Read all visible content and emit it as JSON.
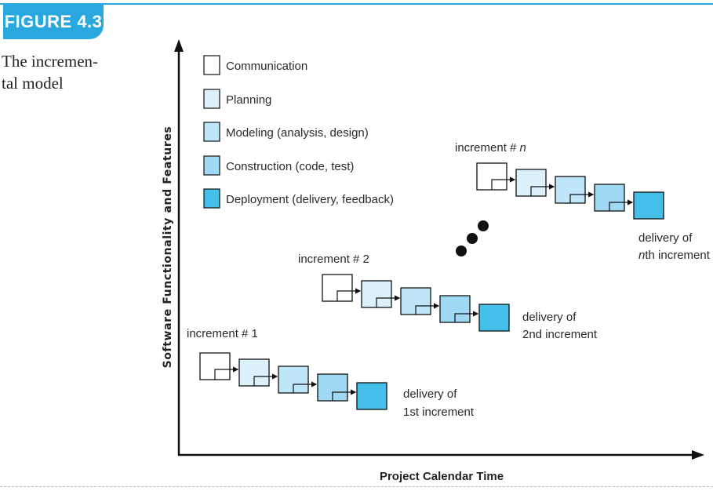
{
  "figure": {
    "badge": "FIGURE 4.3",
    "caption_line1": "The incremen-",
    "caption_line2": "tal model"
  },
  "axes": {
    "x_label": "Project Calendar Time",
    "y_label": "Software Functionality and Features"
  },
  "legend": [
    {
      "label": "Communication",
      "color": "#ffffff"
    },
    {
      "label": "Planning",
      "color": "#dcf1fc"
    },
    {
      "label": "Modeling (analysis, design)",
      "color": "#bee6f8"
    },
    {
      "label": "Construction (code, test)",
      "color": "#9fd9f3"
    },
    {
      "label": "Deployment (delivery, feedback)",
      "color": "#44bfe9"
    }
  ],
  "increments": [
    {
      "label": "increment # 1",
      "delivery_line1": "delivery of",
      "delivery_line2": "1st increment"
    },
    {
      "label": "increment # 2",
      "delivery_line1": "delivery of",
      "delivery_line2": "2nd increment"
    },
    {
      "label": "increment # ",
      "label_italic": "n",
      "delivery_line1": "delivery of",
      "delivery_line2_italic": "n",
      "delivery_line2": "th increment"
    }
  ],
  "colors": {
    "accent": "#29a8e0",
    "border": "#111111",
    "ellipsis_dot": "#111111"
  }
}
